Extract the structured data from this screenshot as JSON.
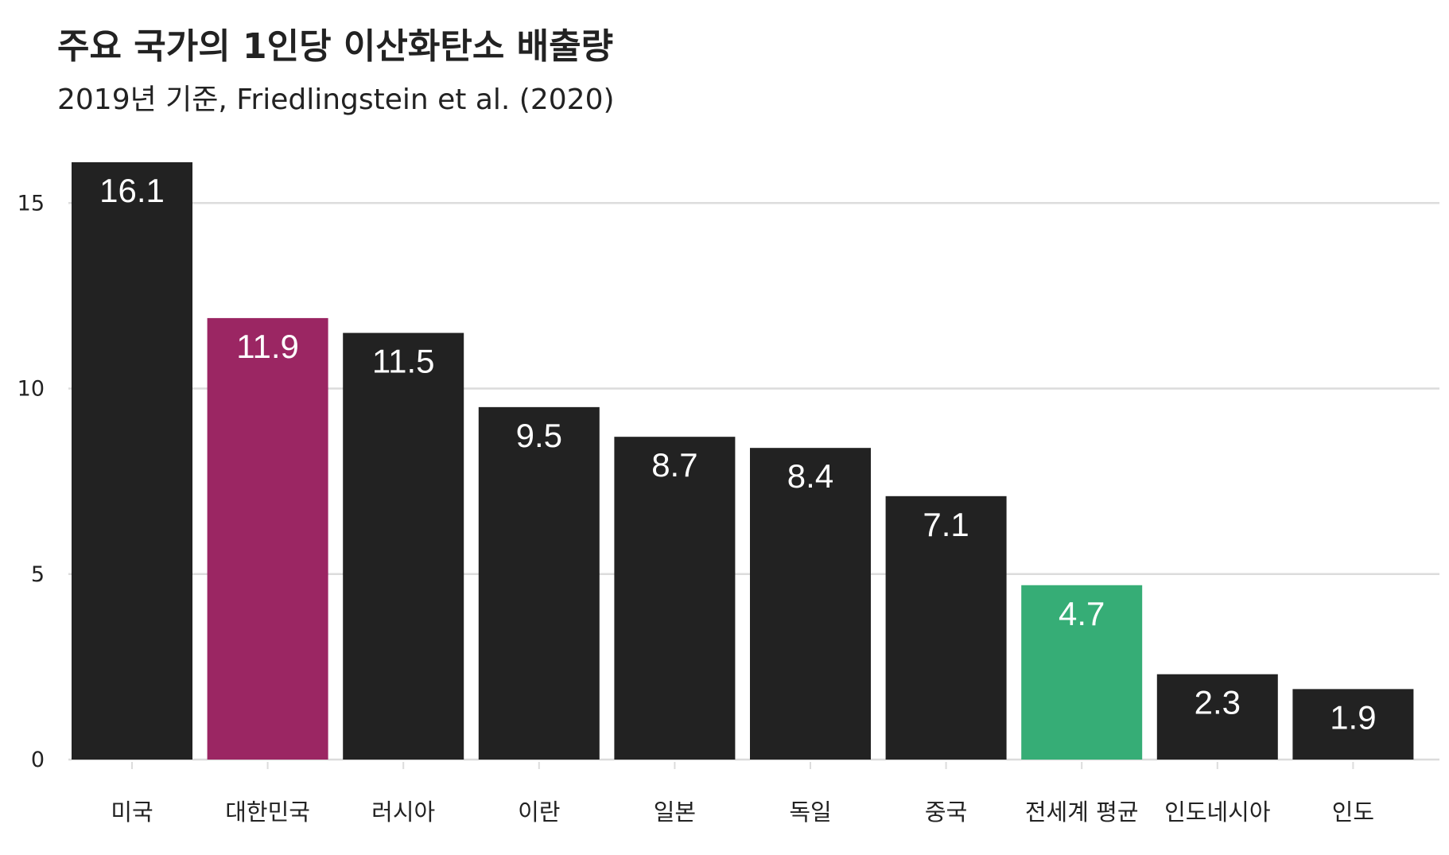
{
  "chart_data": {
    "type": "bar",
    "title": "주요 국가의 1인당 이산화탄소 배출량",
    "subtitle": "2019년 기준, Friedlingstein et al. (2020)",
    "xlabel": "",
    "ylabel": "",
    "categories": [
      "미국",
      "대한민국",
      "러시아",
      "이란",
      "일본",
      "독일",
      "중국",
      "전세계 평균",
      "인도네시아",
      "인도"
    ],
    "values": [
      16.1,
      11.9,
      11.5,
      9.5,
      8.7,
      8.4,
      7.1,
      4.7,
      2.3,
      1.9
    ],
    "value_labels": [
      "16.1",
      "11.9",
      "11.5",
      "9.5",
      "8.7",
      "8.4",
      "7.1",
      "4.7",
      "2.3",
      "1.9"
    ],
    "colors": [
      "#222222",
      "#9b2663",
      "#222222",
      "#222222",
      "#222222",
      "#222222",
      "#222222",
      "#36ad76",
      "#222222",
      "#222222"
    ],
    "yticks": [
      0,
      5,
      10,
      15
    ],
    "ytick_labels": [
      "0",
      "5",
      "10",
      "15"
    ],
    "ylim": [
      0,
      16.1
    ],
    "grid": true,
    "legend": "none"
  }
}
